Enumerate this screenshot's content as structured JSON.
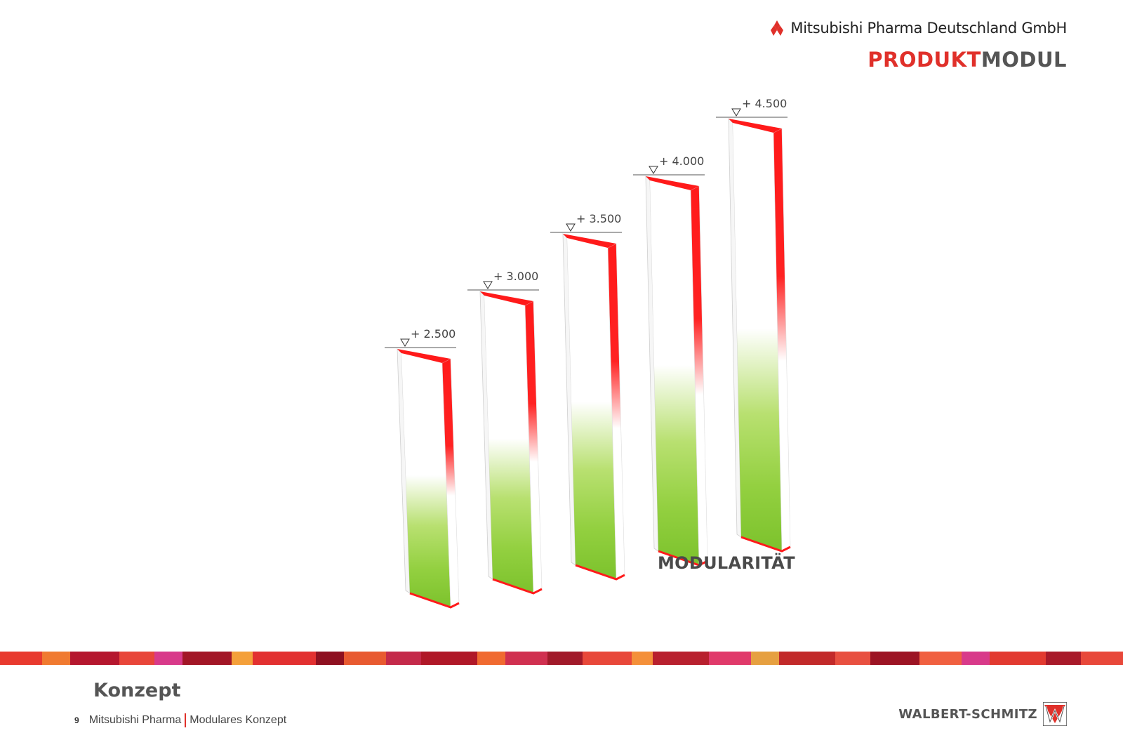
{
  "header": {
    "company": "Mitsubishi Pharma Deutschland GmbH",
    "product_title_part1": "PRODUKT",
    "product_title_part2": "MODUL"
  },
  "levels": [
    {
      "label": "+ 2.500",
      "value": 2500
    },
    {
      "label": "+ 3.000",
      "value": 3000
    },
    {
      "label": "+ 3.500",
      "value": 3500
    },
    {
      "label": "+ 4.000",
      "value": 4000
    },
    {
      "label": "+ 4.500",
      "value": 4500
    }
  ],
  "caption": "MODULARITÄT",
  "footer": {
    "section_title": "Konzept",
    "page_number": "9",
    "breadcrumb_left": "Mitsubishi Pharma",
    "breadcrumb_right": "Modulares Konzept"
  },
  "brand": "WALBERT-SCHMITZ",
  "colors": {
    "accent_red": "#e0302a",
    "panel_red": "#ff1a1a",
    "panel_green": "#8fcf3a",
    "text_grey": "#555555"
  }
}
